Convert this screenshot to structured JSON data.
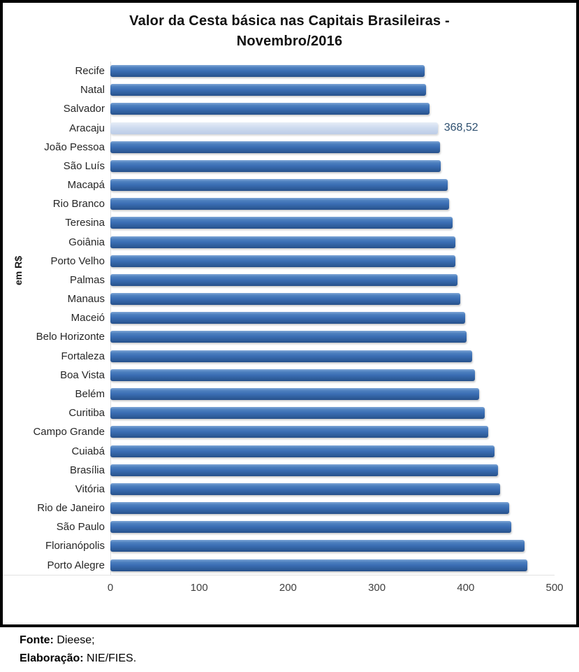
{
  "title_lines": [
    "Valor da Cesta básica nas Capitais Brasileiras -",
    "Novembro/2016"
  ],
  "y_axis_title": "em R$",
  "footer": {
    "source_label": "Fonte:",
    "source_value": " Dieese;",
    "elaboration_label": "Elaboração:",
    "elaboration_value": " NIE/FIES."
  },
  "colors": {
    "bar": "#3a6db3",
    "bar_highlight": "#ccd9ee",
    "value_label_text": "#2e5070",
    "border": "#000000"
  },
  "chart_data": {
    "type": "bar",
    "orientation": "horizontal",
    "title": "Valor da Cesta básica nas Capitais Brasileiras - Novembro/2016",
    "xlabel": "",
    "ylabel": "em R$",
    "xlim": [
      0,
      500
    ],
    "x_ticks": [
      0,
      100,
      200,
      300,
      400,
      500
    ],
    "grid": false,
    "legend": false,
    "categories": [
      "Recife",
      "Natal",
      "Salvador",
      "Aracaju",
      "João Pessoa",
      "São Luís",
      "Macapá",
      "Rio Branco",
      "Teresina",
      "Goiânia",
      "Porto Velho",
      "Palmas",
      "Manaus",
      "Maceió",
      "Belo Horizonte",
      "Fortaleza",
      "Boa Vista",
      "Belém",
      "Curitiba",
      "Campo Grande",
      "Cuiabá",
      "Brasília",
      "Vitória",
      "Rio de Janeiro",
      "São Paulo",
      "Florianópolis",
      "Porto Alegre"
    ],
    "values": [
      354,
      355,
      359,
      368.52,
      371,
      372,
      380,
      381,
      385,
      388,
      388,
      391,
      394,
      399,
      401,
      407,
      410,
      415,
      421,
      425,
      432,
      436,
      439,
      449,
      451,
      466,
      469
    ],
    "highlight": {
      "category": "Aracaju",
      "value": 368.52,
      "value_label": "368,52"
    }
  }
}
